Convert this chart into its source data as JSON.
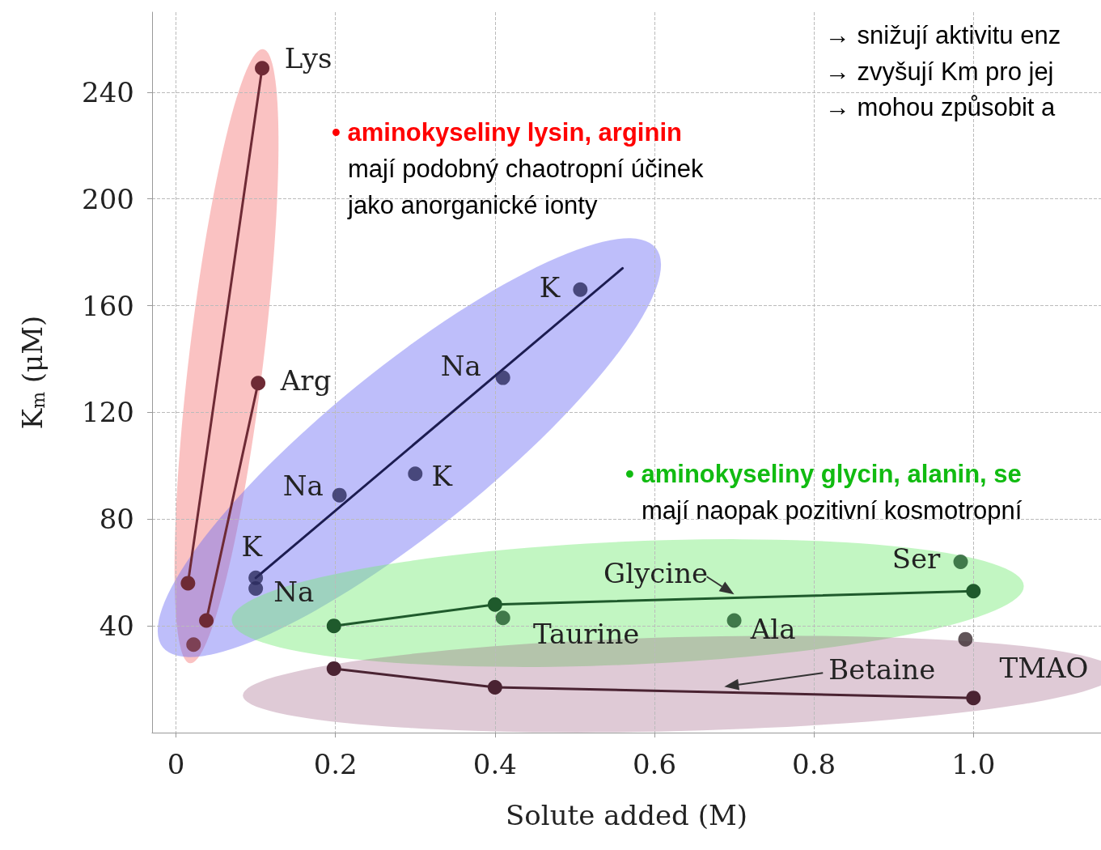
{
  "chart_data": {
    "type": "scatter",
    "xlabel": "Solute added (M)",
    "ylabel": "K$_{m}$ (μM)",
    "xlim": [
      -0.03,
      1.16
    ],
    "xticks": [
      0,
      0.2,
      0.4,
      0.6,
      0.8,
      {
        "value": 1,
        "label": "1.0"
      }
    ],
    "ylim": [
      0,
      270
    ],
    "yticks": [
      40,
      80,
      120,
      160,
      200,
      240
    ],
    "grid": true,
    "marker": "circle",
    "series": [
      {
        "type": "line",
        "color": "#6e2a35",
        "x": [
          0.015,
          0.108
        ],
        "values": [
          56,
          249
        ]
      },
      {
        "type": "line",
        "color": "#6e2a35",
        "x": [
          0.038,
          0.103
        ],
        "values": [
          42,
          131
        ]
      },
      {
        "color": "#6e2a35",
        "x": [
          0.022
        ],
        "values": [
          33
        ]
      },
      {
        "type": "line",
        "color": "#1c1c50",
        "marker": "none",
        "x": [
          0.1,
          0.56
        ],
        "values": [
          58,
          174
        ]
      },
      {
        "color": "#2a2a5c",
        "x": [
          0.1,
          0.1,
          0.205,
          0.3,
          0.41,
          0.507
        ],
        "values": [
          58,
          54,
          89,
          97,
          133,
          166
        ]
      },
      {
        "type": "line",
        "color": "#1f5a2c",
        "x": [
          0.198,
          0.4,
          1.0
        ],
        "values": [
          40,
          48,
          53
        ]
      },
      {
        "color": "#1f5a2c",
        "x": [
          0.41,
          0.7,
          0.984
        ],
        "values": [
          43,
          42,
          64
        ]
      },
      {
        "type": "line",
        "color": "#4a2332",
        "x": [
          0.198,
          0.4,
          1.0
        ],
        "values": [
          24,
          17,
          13
        ]
      },
      {
        "color": "#3a2a30",
        "x": [
          0.99
        ],
        "values": [
          35
        ]
      }
    ],
    "annotations": [
      "• aminokyseliny lysin, arginin",
      "mají podobný chaotropní účinek",
      "jako anorganické ionty",
      "→ snižují aktivitu enz",
      "→ zvyšují Km pro jej",
      "→ mohou způsobit a",
      "• aminokyseliny glycin, alanin, se",
      "mají naopak pozitivní kosmotropní",
      {
        "text": "Lys",
        "x": 0.108,
        "y": 249
      },
      {
        "text": "Arg",
        "x": 0.103,
        "y": 131
      },
      {
        "text": "K",
        "x": 0.507,
        "y": 166
      },
      {
        "text": "Na",
        "x": 0.41,
        "y": 133
      },
      {
        "text": "Na",
        "x": 0.205,
        "y": 89
      },
      {
        "text": "K",
        "x": 0.3,
        "y": 97
      },
      {
        "text": "K",
        "x": 0.1,
        "y": 58
      },
      {
        "text": "Na",
        "x": 0.1,
        "y": 54
      },
      {
        "text": "Glycine",
        "x": 0.7,
        "y": 51.8
      },
      {
        "text": "Taurine",
        "x": 0.41,
        "y": 43
      },
      {
        "text": "Ala",
        "x": 0.7,
        "y": 42
      },
      {
        "text": "Ser",
        "x": 0.984,
        "y": 64
      },
      {
        "text": "Betaine",
        "x": 1.0,
        "y": 13
      },
      {
        "text": "TMAO",
        "x": 0.99,
        "y": 35
      }
    ]
  }
}
